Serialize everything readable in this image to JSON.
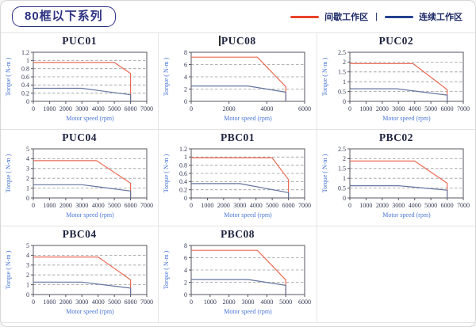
{
  "header": {
    "title": "80框以下系列"
  },
  "legend": {
    "separator": "|",
    "items": [
      {
        "label": "间歇工作区",
        "color": "#e8432b"
      },
      {
        "label": "连续工作区",
        "color": "#24418e"
      }
    ]
  },
  "theme": {
    "curve_intermittent": "#e96a56",
    "curve_continuous": "#64759f",
    "grid_color": "#9a9a9a",
    "axis_color": "#55555f",
    "tick_text": "#333852",
    "axis_label_text": "#4a74d6",
    "title_text": "#1f2440",
    "badge_navy": "#2d3282"
  },
  "chart_data": [
    {
      "type": "line",
      "title": "PUC01",
      "xlabel": "Motor speed (rpm)",
      "ylabel": "Torque ( N-m )",
      "xlim": [
        0,
        7000
      ],
      "xstep": 1000,
      "ylim": [
        0,
        1.2
      ],
      "ystep": 0.2,
      "series": [
        {
          "name": "间歇工作区",
          "points": [
            [
              0,
              0.95
            ],
            [
              5000,
              0.95
            ],
            [
              6000,
              0.68
            ],
            [
              6000,
              0
            ]
          ]
        },
        {
          "name": "连续工作区",
          "points": [
            [
              0,
              0.32
            ],
            [
              3000,
              0.32
            ],
            [
              6000,
              0.16
            ],
            [
              6000,
              0
            ]
          ]
        }
      ]
    },
    {
      "type": "line",
      "title": "PUC08",
      "cursor_artifact": true,
      "xlabel": "Motor speed (rpm)",
      "ylabel": "Torque ( N-m )",
      "xlim": [
        0,
        6000
      ],
      "xstep": 2000,
      "ylim": [
        0,
        8
      ],
      "ystep": 2,
      "series": [
        {
          "name": "间歇工作区",
          "points": [
            [
              0,
              7.2
            ],
            [
              3500,
              7.2
            ],
            [
              5000,
              2.4
            ],
            [
              5000,
              0
            ]
          ]
        },
        {
          "name": "连续工作区",
          "points": [
            [
              0,
              2.5
            ],
            [
              3000,
              2.5
            ],
            [
              5000,
              1.5
            ],
            [
              5000,
              0
            ]
          ]
        }
      ]
    },
    {
      "type": "line",
      "title": "PUC02",
      "xlabel": "Motor speed (rpm)",
      "ylabel": "Torque ( N-m )",
      "xlim": [
        0,
        7000
      ],
      "xstep": 1000,
      "ylim": [
        0,
        2.5
      ],
      "ystep": 0.5,
      "series": [
        {
          "name": "间歇工作区",
          "points": [
            [
              0,
              1.92
            ],
            [
              3900,
              1.92
            ],
            [
              6000,
              0.6
            ],
            [
              6000,
              0
            ]
          ]
        },
        {
          "name": "连续工作区",
          "points": [
            [
              0,
              0.64
            ],
            [
              2900,
              0.64
            ],
            [
              6000,
              0.32
            ],
            [
              6000,
              0
            ]
          ]
        }
      ]
    },
    {
      "type": "line",
      "title": "PUC04",
      "xlabel": "Motor speed (rpm)",
      "ylabel": "Torque ( N-m )",
      "xlim": [
        0,
        7000
      ],
      "xstep": 1000,
      "ylim": [
        0,
        5
      ],
      "ystep": 1,
      "series": [
        {
          "name": "间歇工作区",
          "points": [
            [
              0,
              3.8
            ],
            [
              3900,
              3.8
            ],
            [
              6000,
              1.5
            ],
            [
              6000,
              0
            ]
          ]
        },
        {
          "name": "连续工作区",
          "points": [
            [
              0,
              1.35
            ],
            [
              3000,
              1.35
            ],
            [
              6000,
              0.7
            ],
            [
              6000,
              0
            ]
          ]
        }
      ]
    },
    {
      "type": "line",
      "title": "PBC01",
      "xlabel": "Motor speed (rpm)",
      "ylabel": "Torque ( N-m )",
      "xlim": [
        0,
        7000
      ],
      "xstep": 1000,
      "ylim": [
        0,
        1.2
      ],
      "ystep": 0.2,
      "series": [
        {
          "name": "间歇工作区",
          "points": [
            [
              0,
              0.98
            ],
            [
              5000,
              0.98
            ],
            [
              6000,
              0.45
            ],
            [
              6000,
              0
            ]
          ]
        },
        {
          "name": "连续工作区",
          "points": [
            [
              0,
              0.35
            ],
            [
              3000,
              0.35
            ],
            [
              6000,
              0.13
            ],
            [
              6000,
              0
            ]
          ]
        }
      ]
    },
    {
      "type": "line",
      "title": "PBC02",
      "xlabel": "Motor speed (rpm)",
      "ylabel": "Torque ( N-m )",
      "xlim": [
        0,
        7000
      ],
      "xstep": 1000,
      "ylim": [
        0,
        2.5
      ],
      "ystep": 0.5,
      "series": [
        {
          "name": "间歇工作区",
          "points": [
            [
              0,
              1.88
            ],
            [
              4000,
              1.88
            ],
            [
              6000,
              0.75
            ],
            [
              6000,
              0
            ]
          ]
        },
        {
          "name": "连续工作区",
          "points": [
            [
              0,
              0.62
            ],
            [
              3000,
              0.62
            ],
            [
              6000,
              0.4
            ],
            [
              6000,
              0
            ]
          ]
        }
      ]
    },
    {
      "type": "line",
      "title": "PBC04",
      "xlabel": "Motor speed (rpm)",
      "ylabel": "Torque ( N-m )",
      "xlim": [
        0,
        7000
      ],
      "xstep": 1000,
      "ylim": [
        0,
        5
      ],
      "ystep": 1,
      "series": [
        {
          "name": "间歇工作区",
          "points": [
            [
              0,
              3.82
            ],
            [
              4000,
              3.82
            ],
            [
              6000,
              1.5
            ],
            [
              6000,
              0
            ]
          ]
        },
        {
          "name": "连续工作区",
          "points": [
            [
              0,
              1.27
            ],
            [
              3000,
              1.27
            ],
            [
              6000,
              0.65
            ],
            [
              6000,
              0
            ]
          ]
        }
      ]
    },
    {
      "type": "line",
      "title": "PBC08",
      "xlabel": "Motor speed (rpm)",
      "ylabel": "Torque ( N-m )",
      "xlim": [
        0,
        6000
      ],
      "xstep": 1000,
      "ylim": [
        0,
        8
      ],
      "ystep": 2,
      "series": [
        {
          "name": "间歇工作区",
          "points": [
            [
              0,
              7.2
            ],
            [
              3500,
              7.2
            ],
            [
              5000,
              2.4
            ],
            [
              5000,
              0
            ]
          ]
        },
        {
          "name": "连续工作区",
          "points": [
            [
              0,
              2.45
            ],
            [
              3000,
              2.45
            ],
            [
              5000,
              1.5
            ],
            [
              5000,
              0
            ]
          ]
        }
      ]
    }
  ]
}
